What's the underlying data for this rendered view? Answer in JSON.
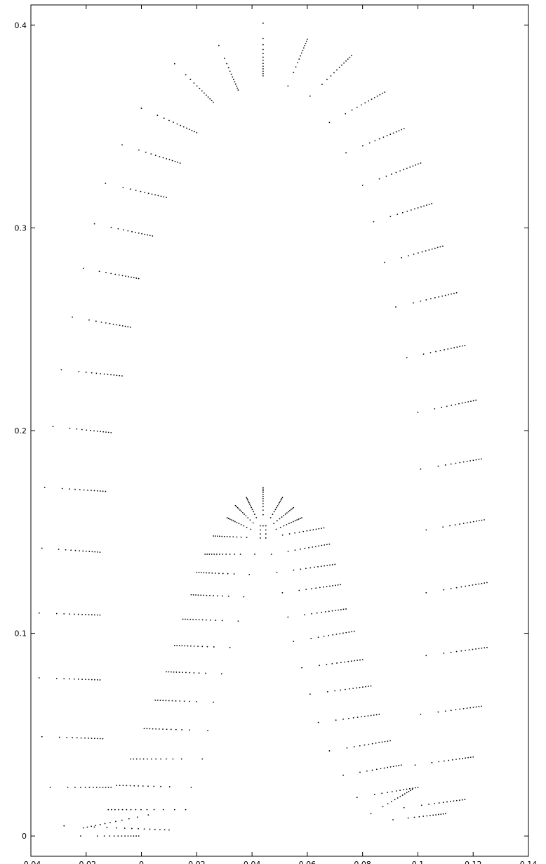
{
  "chart_data": {
    "type": "scatter",
    "title": "",
    "xlabel": "",
    "ylabel": "",
    "xlim": [
      -0.04,
      0.14
    ],
    "ylim": [
      -0.01,
      0.41
    ],
    "grid": false,
    "x_ticks": [
      -0.04,
      -0.02,
      0,
      0.02,
      0.04,
      0.06,
      0.08,
      0.1,
      0.12,
      0.14
    ],
    "x_tick_labels": [
      "-0.04",
      "-0.02",
      "0",
      "0.02",
      "0.04",
      "0.06",
      "0.08",
      "0.1",
      "0.12",
      "0.14"
    ],
    "y_ticks": [
      0,
      0.1,
      0.2,
      0.3,
      0.4
    ],
    "y_tick_labels": [
      "0",
      "0.1",
      "0.2",
      "0.3",
      "0.4"
    ],
    "point_color": "#000000",
    "segments": [
      {
        "group": "outer-left",
        "from": [
          -0.022,
          0.0
        ],
        "to": [
          -0.001,
          0.0
        ]
      },
      {
        "group": "outer-left",
        "from": [
          -0.028,
          0.005
        ],
        "to": [
          0.01,
          0.003
        ]
      },
      {
        "group": "outer-left",
        "from": [
          -0.033,
          0.024
        ],
        "to": [
          -0.011,
          0.024
        ]
      },
      {
        "group": "outer-left",
        "from": [
          -0.036,
          0.049
        ],
        "to": [
          -0.014,
          0.048
        ]
      },
      {
        "group": "outer-left",
        "from": [
          -0.037,
          0.078
        ],
        "to": [
          -0.015,
          0.077
        ]
      },
      {
        "group": "outer-left",
        "from": [
          -0.037,
          0.11
        ],
        "to": [
          -0.015,
          0.109
        ]
      },
      {
        "group": "outer-left",
        "from": [
          -0.036,
          0.142
        ],
        "to": [
          -0.015,
          0.14
        ]
      },
      {
        "group": "outer-left",
        "from": [
          -0.035,
          0.172
        ],
        "to": [
          -0.013,
          0.17
        ]
      },
      {
        "group": "outer-left",
        "from": [
          -0.032,
          0.202
        ],
        "to": [
          -0.011,
          0.199
        ]
      },
      {
        "group": "outer-left",
        "from": [
          -0.029,
          0.23
        ],
        "to": [
          -0.007,
          0.227
        ]
      },
      {
        "group": "outer-left",
        "from": [
          -0.025,
          0.256
        ],
        "to": [
          -0.004,
          0.251
        ]
      },
      {
        "group": "outer-left",
        "from": [
          -0.021,
          0.28
        ],
        "to": [
          -0.001,
          0.275
        ]
      },
      {
        "group": "outer-left",
        "from": [
          -0.017,
          0.302
        ],
        "to": [
          0.004,
          0.296
        ]
      },
      {
        "group": "outer-left",
        "from": [
          -0.013,
          0.322
        ],
        "to": [
          0.009,
          0.315
        ]
      },
      {
        "group": "outer-left",
        "from": [
          -0.007,
          0.341
        ],
        "to": [
          0.014,
          0.332
        ]
      },
      {
        "group": "outer-left",
        "from": [
          0.0,
          0.359
        ],
        "to": [
          0.02,
          0.347
        ]
      },
      {
        "group": "outer-top",
        "from": [
          0.012,
          0.381
        ],
        "to": [
          0.026,
          0.362
        ]
      },
      {
        "group": "outer-top",
        "from": [
          0.028,
          0.39
        ],
        "to": [
          0.035,
          0.368
        ]
      },
      {
        "group": "outer-top",
        "from": [
          0.044,
          0.401
        ],
        "to": [
          0.044,
          0.375
        ]
      },
      {
        "group": "outer-top",
        "from": [
          0.053,
          0.37
        ],
        "to": [
          0.06,
          0.393
        ]
      },
      {
        "group": "outer-top",
        "from": [
          0.061,
          0.365
        ],
        "to": [
          0.076,
          0.385
        ]
      },
      {
        "group": "outer-right",
        "from": [
          0.068,
          0.352
        ],
        "to": [
          0.088,
          0.367
        ]
      },
      {
        "group": "outer-right",
        "from": [
          0.074,
          0.337
        ],
        "to": [
          0.095,
          0.349
        ]
      },
      {
        "group": "outer-right",
        "from": [
          0.08,
          0.321
        ],
        "to": [
          0.101,
          0.332
        ]
      },
      {
        "group": "outer-right",
        "from": [
          0.084,
          0.303
        ],
        "to": [
          0.105,
          0.312
        ]
      },
      {
        "group": "outer-right",
        "from": [
          0.088,
          0.283
        ],
        "to": [
          0.109,
          0.291
        ]
      },
      {
        "group": "outer-right",
        "from": [
          0.092,
          0.261
        ],
        "to": [
          0.114,
          0.268
        ]
      },
      {
        "group": "outer-right",
        "from": [
          0.096,
          0.236
        ],
        "to": [
          0.117,
          0.242
        ]
      },
      {
        "group": "outer-right",
        "from": [
          0.1,
          0.209
        ],
        "to": [
          0.121,
          0.215
        ]
      },
      {
        "group": "outer-right",
        "from": [
          0.101,
          0.181
        ],
        "to": [
          0.123,
          0.186
        ]
      },
      {
        "group": "outer-right",
        "from": [
          0.103,
          0.151
        ],
        "to": [
          0.124,
          0.156
        ]
      },
      {
        "group": "outer-right",
        "from": [
          0.103,
          0.12
        ],
        "to": [
          0.125,
          0.125
        ]
      },
      {
        "group": "outer-right",
        "from": [
          0.103,
          0.089
        ],
        "to": [
          0.125,
          0.093
        ]
      },
      {
        "group": "outer-right",
        "from": [
          0.101,
          0.06
        ],
        "to": [
          0.123,
          0.064
        ]
      },
      {
        "group": "outer-right",
        "from": [
          0.099,
          0.035
        ],
        "to": [
          0.12,
          0.039
        ]
      },
      {
        "group": "outer-right",
        "from": [
          0.095,
          0.014
        ],
        "to": [
          0.117,
          0.018
        ]
      },
      {
        "group": "outer-bottom",
        "from": [
          0.091,
          0.008
        ],
        "to": [
          0.11,
          0.011
        ]
      },
      {
        "group": "outer-bottom",
        "from": [
          0.083,
          0.011
        ],
        "to": [
          0.098,
          0.023
        ]
      },
      {
        "group": "inner-left",
        "from": [
          0.012,
          0.013
        ],
        "to": [
          -0.021,
          0.004
        ]
      },
      {
        "group": "inner-left",
        "from": [
          0.016,
          0.013
        ],
        "to": [
          -0.012,
          0.013
        ]
      },
      {
        "group": "inner-left",
        "from": [
          0.018,
          0.024
        ],
        "to": [
          -0.009,
          0.025
        ]
      },
      {
        "group": "inner-left",
        "from": [
          0.022,
          0.038
        ],
        "to": [
          -0.004,
          0.038
        ]
      },
      {
        "group": "inner-left",
        "from": [
          0.024,
          0.052
        ],
        "to": [
          0.001,
          0.053
        ]
      },
      {
        "group": "inner-left",
        "from": [
          0.026,
          0.066
        ],
        "to": [
          0.005,
          0.067
        ]
      },
      {
        "group": "inner-left",
        "from": [
          0.029,
          0.08
        ],
        "to": [
          0.009,
          0.081
        ]
      },
      {
        "group": "inner-left",
        "from": [
          0.032,
          0.093
        ],
        "to": [
          0.012,
          0.094
        ]
      },
      {
        "group": "inner-left",
        "from": [
          0.035,
          0.106
        ],
        "to": [
          0.015,
          0.107
        ]
      },
      {
        "group": "inner-left",
        "from": [
          0.037,
          0.118
        ],
        "to": [
          0.018,
          0.119
        ]
      },
      {
        "group": "inner-left",
        "from": [
          0.039,
          0.129
        ],
        "to": [
          0.02,
          0.13
        ]
      },
      {
        "group": "inner-left",
        "from": [
          0.041,
          0.139
        ],
        "to": [
          0.023,
          0.139
        ]
      },
      {
        "group": "inner-left",
        "from": [
          0.043,
          0.147
        ],
        "to": [
          0.026,
          0.148
        ]
      },
      {
        "group": "inner-top",
        "from": [
          0.043,
          0.149
        ],
        "to": [
          0.031,
          0.157
        ]
      },
      {
        "group": "inner-top",
        "from": [
          0.043,
          0.151
        ],
        "to": [
          0.034,
          0.163
        ]
      },
      {
        "group": "inner-top",
        "from": [
          0.043,
          0.153
        ],
        "to": [
          0.038,
          0.167
        ]
      },
      {
        "group": "inner-top",
        "from": [
          0.044,
          0.153
        ],
        "to": [
          0.044,
          0.172
        ]
      },
      {
        "group": "inner-top",
        "from": [
          0.045,
          0.153
        ],
        "to": [
          0.051,
          0.167
        ]
      },
      {
        "group": "inner-top",
        "from": [
          0.045,
          0.151
        ],
        "to": [
          0.055,
          0.162
        ]
      },
      {
        "group": "inner-top",
        "from": [
          0.045,
          0.149
        ],
        "to": [
          0.058,
          0.157
        ]
      },
      {
        "group": "inner-right",
        "from": [
          0.045,
          0.147
        ],
        "to": [
          0.066,
          0.152
        ]
      },
      {
        "group": "inner-right",
        "from": [
          0.047,
          0.139
        ],
        "to": [
          0.068,
          0.144
        ]
      },
      {
        "group": "inner-right",
        "from": [
          0.049,
          0.13
        ],
        "to": [
          0.07,
          0.134
        ]
      },
      {
        "group": "inner-right",
        "from": [
          0.051,
          0.12
        ],
        "to": [
          0.072,
          0.124
        ]
      },
      {
        "group": "inner-right",
        "from": [
          0.053,
          0.108
        ],
        "to": [
          0.074,
          0.112
        ]
      },
      {
        "group": "inner-right",
        "from": [
          0.055,
          0.096
        ],
        "to": [
          0.077,
          0.101
        ]
      },
      {
        "group": "inner-right",
        "from": [
          0.058,
          0.083
        ],
        "to": [
          0.08,
          0.087
        ]
      },
      {
        "group": "inner-right",
        "from": [
          0.061,
          0.07
        ],
        "to": [
          0.083,
          0.074
        ]
      },
      {
        "group": "inner-right",
        "from": [
          0.064,
          0.056
        ],
        "to": [
          0.086,
          0.06
        ]
      },
      {
        "group": "inner-right",
        "from": [
          0.068,
          0.042
        ],
        "to": [
          0.09,
          0.047
        ]
      },
      {
        "group": "inner-right",
        "from": [
          0.073,
          0.03
        ],
        "to": [
          0.094,
          0.035
        ]
      },
      {
        "group": "inner-right",
        "from": [
          0.078,
          0.019
        ],
        "to": [
          0.1,
          0.024
        ]
      }
    ]
  }
}
